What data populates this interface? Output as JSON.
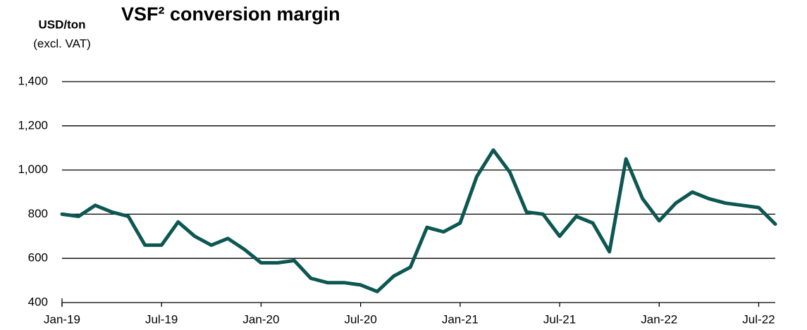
{
  "chart_data": {
    "type": "line",
    "title": "VSF² conversion margin",
    "y_label": "USD/ton",
    "y_sublabel": "(excl. VAT)",
    "x": [
      "2019-01",
      "2019-02",
      "2019-03",
      "2019-04",
      "2019-05",
      "2019-06",
      "2019-07",
      "2019-08",
      "2019-09",
      "2019-10",
      "2019-11",
      "2019-12",
      "2020-01",
      "2020-02",
      "2020-03",
      "2020-04",
      "2020-05",
      "2020-06",
      "2020-07",
      "2020-08",
      "2020-09",
      "2020-10",
      "2020-11",
      "2020-12",
      "2021-01",
      "2021-02",
      "2021-03",
      "2021-04",
      "2021-05",
      "2021-06",
      "2021-07",
      "2021-08",
      "2021-09",
      "2021-10",
      "2021-11",
      "2021-12",
      "2022-01",
      "2022-02",
      "2022-03",
      "2022-04",
      "2022-05",
      "2022-06",
      "2022-07",
      "2022-08"
    ],
    "series": [
      {
        "name": "VSF conversion margin",
        "color": "#0d5752",
        "values": [
          800,
          790,
          840,
          810,
          790,
          660,
          660,
          765,
          700,
          660,
          690,
          640,
          580,
          580,
          590,
          510,
          490,
          490,
          480,
          450,
          520,
          560,
          740,
          720,
          760,
          970,
          1090,
          990,
          810,
          800,
          700,
          790,
          760,
          630,
          1050,
          870,
          770,
          850,
          900,
          870,
          850,
          840,
          830,
          755
        ]
      }
    ],
    "xlim": [
      "2019-01",
      "2022-08"
    ],
    "xticks": [
      {
        "value": "2019-01",
        "label": "Jan-19"
      },
      {
        "value": "2019-07",
        "label": "Jul-19"
      },
      {
        "value": "2020-01",
        "label": "Jan-20"
      },
      {
        "value": "2020-07",
        "label": "Jul-20"
      },
      {
        "value": "2021-01",
        "label": "Jan-21"
      },
      {
        "value": "2021-07",
        "label": "Jul-21"
      },
      {
        "value": "2022-01",
        "label": "Jan-22"
      },
      {
        "value": "2022-07",
        "label": "Jul-22"
      }
    ],
    "ylim": [
      400,
      1400
    ],
    "yticks": [
      400,
      600,
      800,
      {
        "value": 1000,
        "label": "1,000"
      },
      {
        "value": 1200,
        "label": "1,200"
      },
      {
        "value": 1400,
        "label": "1,400"
      }
    ],
    "grid": true
  }
}
